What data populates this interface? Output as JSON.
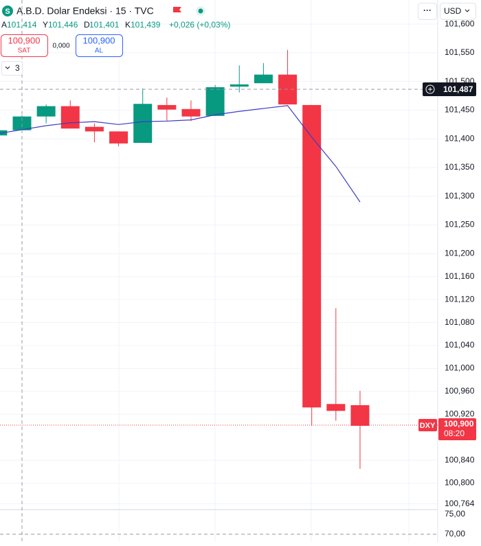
{
  "ui": {
    "icon": "S",
    "title": "A.B.D. Dolar Endeksi · 15 · TVC",
    "ohlc": [
      [
        "A",
        "101,414"
      ],
      [
        "Y",
        "101,446"
      ],
      [
        "D",
        "101,401"
      ],
      [
        "K",
        "101,439"
      ]
    ],
    "change": "+0,026 (+0,03%)",
    "sell_price": "100,900",
    "sell_label": "SAT",
    "spread": "0,000",
    "buy_price": "100,900",
    "buy_label": "AL",
    "indicators": "3",
    "menu": "···",
    "currency": "USD",
    "crosshair_price": "101,487",
    "symbol_tag": "DXY",
    "last_price": "100,900",
    "countdown": "08:20"
  },
  "chart_data": [
    {
      "type": "candlestick",
      "categories": [
        null,
        null,
        null,
        null,
        null,
        null,
        null,
        null,
        null,
        null,
        null,
        null,
        null,
        null,
        null,
        null
      ],
      "open": [
        101.406,
        101.415,
        101.439,
        101.457,
        101.421,
        101.413,
        101.393,
        101.459,
        101.452,
        101.44,
        101.491,
        101.497,
        101.512,
        101.459,
        100.938,
        100.936
      ],
      "high": [
        101.415,
        101.441,
        101.46,
        101.467,
        101.427,
        101.413,
        101.488,
        101.472,
        101.467,
        101.494,
        101.528,
        101.532,
        101.555,
        101.459,
        101.105,
        100.961
      ],
      "low": [
        101.406,
        101.412,
        101.427,
        101.418,
        101.394,
        101.387,
        101.393,
        101.431,
        101.431,
        101.44,
        101.481,
        101.497,
        101.46,
        100.9,
        100.909,
        100.825
      ],
      "close": [
        101.415,
        101.439,
        101.457,
        101.418,
        101.413,
        101.392,
        101.461,
        101.451,
        101.439,
        101.49,
        101.495,
        101.512,
        101.46,
        100.932,
        100.926,
        100.9
      ],
      "up_color": "#089981",
      "down_color": "#f23645",
      "ma": {
        "color": "#3c3cc0",
        "values": [
          101.409,
          101.416,
          101.423,
          101.428,
          101.43,
          101.425,
          101.43,
          101.431,
          101.433,
          101.442,
          101.448,
          101.453,
          101.458,
          101.403,
          101.352,
          101.29
        ]
      },
      "ylim": [
        100.754,
        101.642
      ],
      "yticks": [
        {
          "value": 101.6,
          "label": "101,600"
        },
        {
          "value": 101.55,
          "label": "101,550"
        },
        {
          "value": 101.5,
          "label": "101,500"
        },
        {
          "value": 101.45,
          "label": "101,450"
        },
        {
          "value": 101.4,
          "label": "101,400"
        },
        {
          "value": 101.35,
          "label": "101,350"
        },
        {
          "value": 101.3,
          "label": "101,300"
        },
        {
          "value": 101.25,
          "label": "101,250"
        },
        {
          "value": 101.2,
          "label": "101,200"
        },
        {
          "value": 101.16,
          "label": "101,160"
        },
        {
          "value": 101.12,
          "label": "101,120"
        },
        {
          "value": 101.08,
          "label": "101,080"
        },
        {
          "value": 101.04,
          "label": "101,040"
        },
        {
          "value": 101.0,
          "label": "101,000"
        },
        {
          "value": 100.96,
          "label": "100,960"
        },
        {
          "value": 100.92,
          "label": "100,920"
        },
        {
          "value": 100.84,
          "label": "100,840"
        },
        {
          "value": 100.8,
          "label": "100,800"
        },
        {
          "value": 100.764,
          "label": "100,764"
        }
      ],
      "grid": true
    },
    {
      "type": "line",
      "ylim": [
        67.9,
        76.2
      ],
      "yticks": [
        {
          "value": 75,
          "label": "75,00"
        },
        {
          "value": 70,
          "label": "70,00"
        }
      ]
    }
  ]
}
